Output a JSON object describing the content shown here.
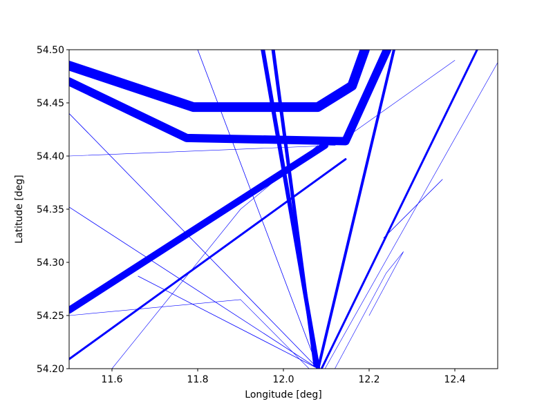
{
  "chart_data": {
    "type": "line",
    "xlabel": "Longitude [deg]",
    "ylabel": "Latitude [deg]",
    "xlim": [
      11.5,
      12.5
    ],
    "ylim": [
      54.2,
      54.5
    ],
    "xticks": [
      11.6,
      11.8,
      {
        "value": 12,
        "label": "12.0"
      },
      12.2,
      12.4
    ],
    "yticks": [
      {
        "value": 54.2,
        "label": "54.20"
      },
      54.25,
      {
        "value": 54.3,
        "label": "54.30"
      },
      54.35,
      {
        "value": 54.4,
        "label": "54.40"
      },
      54.45,
      {
        "value": 54.5,
        "label": "54.50"
      }
    ],
    "series": [
      {
        "color": "#0000ff",
        "linewidth": 14,
        "x": [
          11.5,
          11.79,
          12.08,
          12.16,
          12.19
        ],
        "values": [
          54.485,
          54.446,
          54.446,
          54.466,
          54.5
        ]
      },
      {
        "color": "#0000ff",
        "linewidth": 12,
        "x": [
          11.5,
          11.774,
          12.145,
          12.242
        ],
        "values": [
          54.47,
          54.417,
          54.414,
          54.5
        ]
      },
      {
        "color": "#0000ff",
        "linewidth": 10,
        "x": [
          11.5,
          12.097
        ],
        "values": [
          54.255,
          54.41
        ]
      },
      {
        "color": "#0000ff",
        "linewidth": 3,
        "x": [
          11.5,
          12.145
        ],
        "values": [
          54.209,
          54.397
        ]
      },
      {
        "color": "#0000ff",
        "linewidth": 6,
        "x": [
          11.952,
          12.081
        ],
        "values": [
          54.5,
          54.2
        ]
      },
      {
        "color": "#0000ff",
        "linewidth": 5,
        "x": [
          11.976,
          12.074
        ],
        "values": [
          54.5,
          54.203
        ]
      },
      {
        "color": "#0000ff",
        "linewidth": 4,
        "x": [
          12.081,
          12.258
        ],
        "values": [
          54.2,
          54.5
        ]
      },
      {
        "color": "#0000ff",
        "linewidth": 3,
        "x": [
          12.089,
          12.452
        ],
        "values": [
          54.2,
          54.5
        ]
      },
      {
        "color": "#0000ff",
        "linewidth": 0.6,
        "x": [
          12.097,
          12.5
        ],
        "values": [
          54.2,
          54.488
        ]
      },
      {
        "color": "#0000ff",
        "linewidth": 0.8,
        "x": [
          12.081,
          11.5
        ],
        "values": [
          54.2,
          54.352
        ]
      },
      {
        "color": "#0000ff",
        "linewidth": 0.8,
        "x": [
          12.081,
          11.661
        ],
        "values": [
          54.2,
          54.287
        ]
      },
      {
        "color": "#0000ff",
        "linewidth": 0.8,
        "x": [
          12.081,
          11.5
        ],
        "values": [
          54.2,
          54.44
        ]
      },
      {
        "color": "#0000ff",
        "linewidth": 0.8,
        "x": [
          12.081,
          11.8
        ],
        "values": [
          54.2,
          54.5
        ]
      },
      {
        "color": "#0000ff",
        "linewidth": 0.6,
        "x": [
          11.5,
          11.9,
          12.06
        ],
        "values": [
          54.25,
          54.265,
          54.2
        ]
      },
      {
        "color": "#0000ff",
        "linewidth": 0.8,
        "x": [
          12.234,
          12.371
        ],
        "values": [
          54.323,
          54.378
        ]
      },
      {
        "color": "#0000ff",
        "linewidth": 0.6,
        "x": [
          11.5,
          12.12,
          12.4
        ],
        "values": [
          54.4,
          54.41,
          54.49
        ]
      },
      {
        "color": "#0000ff",
        "linewidth": 0.6,
        "x": [
          11.6,
          11.9,
          12.08
        ],
        "values": [
          54.2,
          54.35,
          54.41
        ]
      },
      {
        "color": "#0000ff",
        "linewidth": 0.6,
        "x": [
          12.12,
          12.24,
          12.28,
          12.2
        ],
        "values": [
          54.2,
          54.29,
          54.31,
          54.25
        ]
      }
    ]
  }
}
